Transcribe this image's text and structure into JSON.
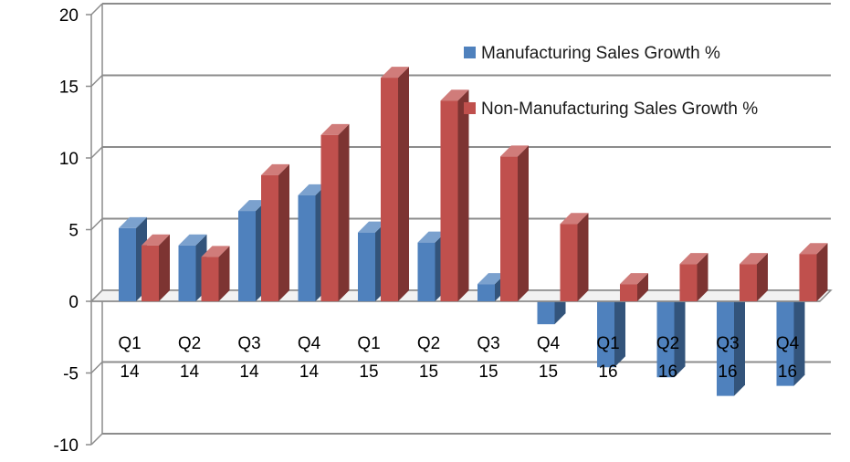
{
  "chart_data": {
    "type": "bar",
    "title": "",
    "xlabel": "",
    "ylabel": "",
    "ylim": [
      -10,
      20
    ],
    "yticks": [
      -10,
      -5,
      0,
      5,
      10,
      15,
      20
    ],
    "grid": true,
    "legend_position": "top-right",
    "categories": [
      [
        "Q1",
        "14"
      ],
      [
        "Q2",
        "14"
      ],
      [
        "Q3",
        "14"
      ],
      [
        "Q4",
        "14"
      ],
      [
        "Q1",
        "15"
      ],
      [
        "Q2",
        "15"
      ],
      [
        "Q3",
        "15"
      ],
      [
        "Q4",
        "15"
      ],
      [
        "Q1",
        "16"
      ],
      [
        "Q2",
        "16"
      ],
      [
        "Q3",
        "16"
      ],
      [
        "Q4",
        "16"
      ]
    ],
    "series": [
      {
        "name": "Manufacturing Sales Growth %",
        "color": "#4f81bd",
        "values": [
          5.1,
          3.9,
          6.3,
          7.4,
          4.8,
          4.1,
          1.2,
          -1.6,
          -4.6,
          -5.3,
          -6.6,
          -5.9
        ]
      },
      {
        "name": "Non-Manufacturing Sales Growth %",
        "color": "#c0504d",
        "values": [
          3.9,
          3.1,
          8.8,
          11.6,
          15.6,
          14.0,
          10.1,
          5.4,
          1.2,
          2.6,
          2.6,
          3.3
        ]
      }
    ]
  }
}
